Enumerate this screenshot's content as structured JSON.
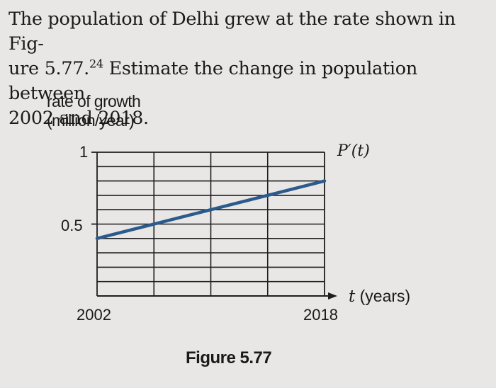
{
  "problem": {
    "line1": "The population of Delhi grew at the rate shown in Fig-",
    "line2_pre": "ure 5.77.",
    "footnote": "24",
    "line2_post": " Estimate the change in population between",
    "line3": "2002 and 2018."
  },
  "figure": {
    "caption": "Figure 5.77",
    "function_label": "P′(t)",
    "x_axis_var": "t",
    "x_axis_unit": "(years)",
    "y_axis_label_line1": "rate of growth",
    "y_axis_label_line2": "(million/year)"
  },
  "chart_data": {
    "type": "line",
    "xlabel": "t (years)",
    "ylabel": "rate of growth (million/year)",
    "xlim": [
      2002,
      2018
    ],
    "ylim": [
      0,
      1
    ],
    "x_tick_labels": [
      "2002",
      "2018"
    ],
    "y_tick_labels": [
      "1",
      "0.5"
    ],
    "grid": true,
    "x_grid_step": 4,
    "y_grid_step": 0.1,
    "series": [
      {
        "name": "P′(t)",
        "color": "#2b5a8c",
        "x": [
          2002,
          2018
        ],
        "y": [
          0.4,
          0.8
        ]
      }
    ]
  }
}
